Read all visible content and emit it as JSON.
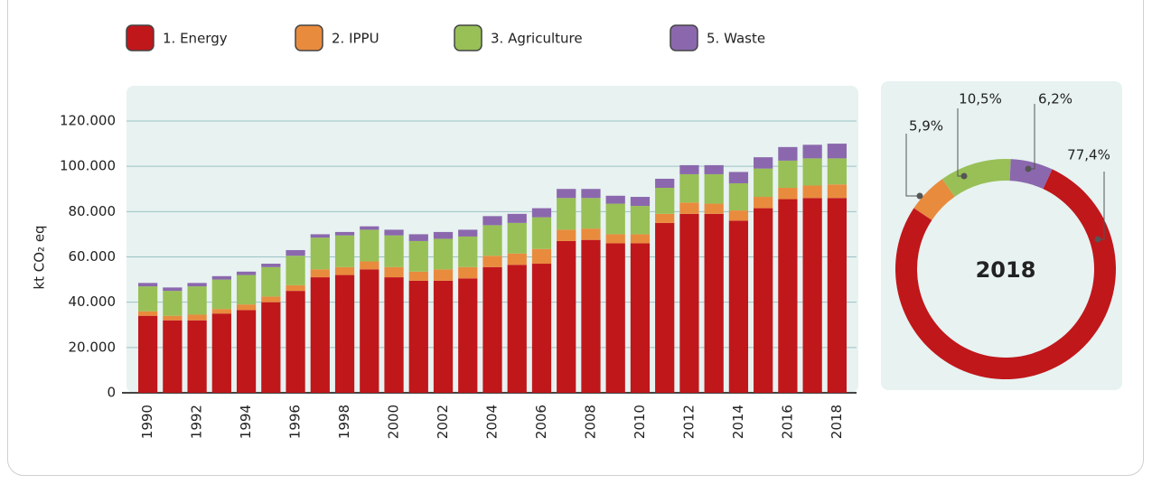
{
  "chart_data": [
    {
      "type": "bar",
      "stacked": true,
      "ylabel": "kt CO₂ eq",
      "categories": [
        "1990",
        null,
        "1992",
        null,
        "1994",
        null,
        "1996",
        null,
        "1998",
        null,
        "2000",
        null,
        "2002",
        null,
        "2004",
        null,
        "2006",
        null,
        "2008",
        null,
        "2010",
        null,
        "2012",
        null,
        "2014",
        null,
        "2016",
        null,
        "2018"
      ],
      "series": [
        {
          "name": "1. Energy",
          "color": "#c0171b",
          "values": [
            34000,
            32000,
            32000,
            35000,
            36500,
            40000,
            45000,
            51000,
            52000,
            54500,
            51000,
            49500,
            49500,
            50500,
            55500,
            56500,
            57000,
            67000,
            67500,
            66000,
            66000,
            75000,
            79000,
            79000,
            76000,
            81500,
            85500,
            86000,
            86000
          ]
        },
        {
          "name": "2. IPPU",
          "color": "#e98b3d",
          "values": [
            2000,
            2000,
            2500,
            2000,
            2500,
            2500,
            2500,
            3500,
            3500,
            3500,
            4500,
            4000,
            5000,
            5000,
            5000,
            5000,
            6500,
            5000,
            5000,
            4000,
            4000,
            4000,
            5000,
            4500,
            4500,
            5000,
            5000,
            5500,
            6000
          ]
        },
        {
          "name": "3. Agriculture",
          "color": "#98c057",
          "values": [
            11000,
            11000,
            12500,
            13000,
            13000,
            13000,
            13000,
            14000,
            14000,
            14000,
            14000,
            13500,
            13500,
            13500,
            13500,
            13500,
            14000,
            14000,
            13500,
            13500,
            12500,
            11500,
            12500,
            13000,
            12000,
            12500,
            12000,
            12000,
            11500
          ]
        },
        {
          "name": "5. Waste",
          "color": "#8b68ad",
          "values": [
            1500,
            1500,
            1500,
            1500,
            1500,
            1500,
            2500,
            1500,
            1500,
            1500,
            2500,
            3000,
            3000,
            3000,
            4000,
            4000,
            4000,
            4000,
            4000,
            3500,
            4000,
            4000,
            4000,
            4000,
            5000,
            5000,
            6000,
            6000,
            6500
          ]
        }
      ],
      "ylim": [
        0,
        120000
      ],
      "yticks": [
        0,
        {
          "value": 20000,
          "label": "20.000"
        },
        {
          "value": 40000,
          "label": "40.000"
        },
        {
          "value": 60000,
          "label": "60.000"
        },
        {
          "value": 80000,
          "label": "80.000"
        },
        {
          "value": 100000,
          "label": "100.000"
        },
        {
          "value": 120000,
          "label": "120.000"
        }
      ],
      "grid": true
    },
    {
      "type": "pie",
      "donut": true,
      "center_label": "2018",
      "values": [
        77.4,
        5.9,
        10.5,
        6.2
      ],
      "value_labels": [
        "77,4%",
        "5,9%",
        "10,5%",
        "6,2%"
      ],
      "colors": [
        "#c0171b",
        "#e98b3d",
        "#98c057",
        "#8b68ad"
      ]
    }
  ]
}
